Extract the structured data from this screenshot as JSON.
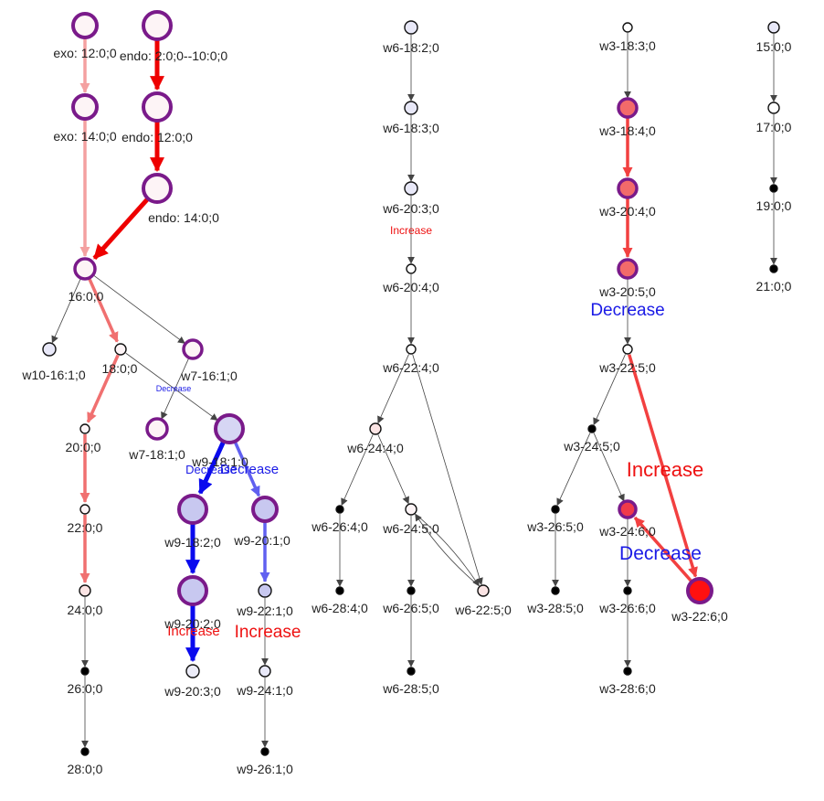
{
  "colors": {
    "purple": "#7a1a8a",
    "dark": "#111111",
    "strong_red": "#ee0000",
    "pink": "#f4a0a0",
    "salmon": "#f07070",
    "red_light": "#f24040",
    "blue": "#0a0aee",
    "blue_light": "#6060f0",
    "gray": "#444444",
    "increase": "#ee1111",
    "decrease": "#1a1ae6"
  },
  "nodes": [
    {
      "id": "exo12",
      "label": "exo: 12:0;0",
      "fill": "#fdf4f6",
      "stroke": "purple"
    },
    {
      "id": "endo2",
      "label": "endo: 2:0;0--10:0;0",
      "fill": "#fdf4f6",
      "stroke": "purple"
    },
    {
      "id": "exo14",
      "label": "exo: 14:0;0",
      "fill": "#fdf4f6",
      "stroke": "purple"
    },
    {
      "id": "endo12",
      "label": "endo: 12:0;0",
      "fill": "#fdf4f6",
      "stroke": "purple"
    },
    {
      "id": "endo14",
      "label": "endo: 14:0;0",
      "fill": "#fdf4f6",
      "stroke": "purple"
    },
    {
      "id": "n16",
      "label": "16:0;0",
      "fill": "#fdf4f6",
      "stroke": "purple"
    },
    {
      "id": "w10_16_1",
      "label": "w10-16:1;0",
      "fill": "#e8e8f8",
      "stroke": "dark"
    },
    {
      "id": "n18",
      "label": "18:0;0",
      "fill": "#fdf4f6",
      "stroke": "dark"
    },
    {
      "id": "w7_16_1",
      "label": "w7-16:1;0",
      "fill": "#fdf4f6",
      "stroke": "purple"
    },
    {
      "id": "n20",
      "label": "20:0;0",
      "fill": "#fdf4f6",
      "stroke": "dark"
    },
    {
      "id": "w7_18_1",
      "label": "w7-18:1;0",
      "fill": "#fdf4f6",
      "stroke": "purple"
    },
    {
      "id": "w9_18_1",
      "label": "w9-18:1;0",
      "fill": "#d6d6f4",
      "stroke": "purple"
    },
    {
      "id": "n22",
      "label": "22:0;0",
      "fill": "#fdf4f6",
      "stroke": "dark"
    },
    {
      "id": "w9_18_2",
      "label": "w9-18:2;0",
      "fill": "#c8c8f0",
      "stroke": "purple"
    },
    {
      "id": "w9_20_1",
      "label": "w9-20:1;0",
      "fill": "#c8c8f0",
      "stroke": "purple"
    },
    {
      "id": "n24",
      "label": "24:0;0",
      "fill": "#fbe4e4",
      "stroke": "dark"
    },
    {
      "id": "w9_20_2",
      "label": "w9-20:2;0",
      "fill": "#c8c8f0",
      "stroke": "purple"
    },
    {
      "id": "w9_22_1",
      "label": "w9-22:1;0",
      "fill": "#c8c8f0",
      "stroke": "dark"
    },
    {
      "id": "n26",
      "label": "26:0;0",
      "fill": "#000000",
      "stroke": "dark"
    },
    {
      "id": "w9_20_3",
      "label": "w9-20:3;0",
      "fill": "#ececf8",
      "stroke": "dark"
    },
    {
      "id": "w9_24_1",
      "label": "w9-24:1;0",
      "fill": "#e8e8f8",
      "stroke": "dark"
    },
    {
      "id": "n28",
      "label": "28:0;0",
      "fill": "#000000",
      "stroke": "dark"
    },
    {
      "id": "w9_26_1",
      "label": "w9-26:1;0",
      "fill": "#000000",
      "stroke": "dark"
    },
    {
      "id": "w6_18_2",
      "label": "w6-18:2;0",
      "fill": "#e8e8f8",
      "stroke": "dark"
    },
    {
      "id": "w6_18_3",
      "label": "w6-18:3;0",
      "fill": "#e8e8f8",
      "stroke": "dark"
    },
    {
      "id": "w6_20_3",
      "label": "w6-20:3;0",
      "fill": "#e8e8f8",
      "stroke": "dark"
    },
    {
      "id": "w6_20_4",
      "label": "w6-20:4;0",
      "fill": "#ffffff",
      "stroke": "dark"
    },
    {
      "id": "w6_22_4",
      "label": "w6-22:4;0",
      "fill": "#ffffff",
      "stroke": "dark"
    },
    {
      "id": "w6_24_4",
      "label": "w6-24:4;0",
      "fill": "#fbe4e4",
      "stroke": "dark"
    },
    {
      "id": "w6_26_4",
      "label": "w6-26:4;0",
      "fill": "#000000",
      "stroke": "dark"
    },
    {
      "id": "w6_24_5",
      "label": "w6-24:5;0",
      "fill": "#fdf4f6",
      "stroke": "dark"
    },
    {
      "id": "w6_22_5",
      "label": "w6-22:5;0",
      "fill": "#fbe4e4",
      "stroke": "dark"
    },
    {
      "id": "w6_28_4",
      "label": "w6-28:4;0",
      "fill": "#000000",
      "stroke": "dark"
    },
    {
      "id": "w6_26_5",
      "label": "w6-26:5;0",
      "fill": "#000000",
      "stroke": "dark"
    },
    {
      "id": "w6_28_5",
      "label": "w6-28:5;0",
      "fill": "#000000",
      "stroke": "dark"
    },
    {
      "id": "w3_18_3",
      "label": "w3-18:3;0",
      "fill": "#ffffff",
      "stroke": "dark"
    },
    {
      "id": "w3_18_4",
      "label": "w3-18:4;0",
      "fill": "#f26a6a",
      "stroke": "purple"
    },
    {
      "id": "w3_20_4",
      "label": "w3-20:4;0",
      "fill": "#f26a6a",
      "stroke": "purple"
    },
    {
      "id": "w3_20_5",
      "label": "w3-20:5;0",
      "fill": "#f26a6a",
      "stroke": "purple"
    },
    {
      "id": "w3_22_5",
      "label": "w3-22:5;0",
      "fill": "#ffffff",
      "stroke": "dark"
    },
    {
      "id": "w3_24_5",
      "label": "w3-24:5;0",
      "fill": "#000000",
      "stroke": "dark"
    },
    {
      "id": "w3_26_5",
      "label": "w3-26:5;0",
      "fill": "#000000",
      "stroke": "dark"
    },
    {
      "id": "w3_24_6",
      "label": "w3-24:6;0",
      "fill": "#f03a4a",
      "stroke": "purple"
    },
    {
      "id": "w3_22_6",
      "label": "w3-22:6;0",
      "fill": "#ff1010",
      "stroke": "purple"
    },
    {
      "id": "w3_28_5",
      "label": "w3-28:5;0",
      "fill": "#000000",
      "stroke": "dark"
    },
    {
      "id": "w3_26_6",
      "label": "w3-26:6;0",
      "fill": "#000000",
      "stroke": "dark"
    },
    {
      "id": "w3_28_6",
      "label": "w3-28:6;0",
      "fill": "#000000",
      "stroke": "dark"
    },
    {
      "id": "n15",
      "label": "15:0;0",
      "fill": "#e8e8f8",
      "stroke": "dark"
    },
    {
      "id": "n17",
      "label": "17:0;0",
      "fill": "#ffffff",
      "stroke": "dark"
    },
    {
      "id": "n19",
      "label": "19:0;0",
      "fill": "#000000",
      "stroke": "dark"
    },
    {
      "id": "n21",
      "label": "21:0;0",
      "fill": "#000000",
      "stroke": "dark"
    }
  ],
  "edges": [
    {
      "from": "exo12",
      "to": "exo14",
      "color": "pink",
      "style": "thick"
    },
    {
      "from": "exo14",
      "to": "n16",
      "color": "pink",
      "style": "thick"
    },
    {
      "from": "endo2",
      "to": "endo12",
      "color": "strong_red",
      "style": "heavy"
    },
    {
      "from": "endo12",
      "to": "endo14",
      "color": "strong_red",
      "style": "heavy"
    },
    {
      "from": "endo14",
      "to": "n16",
      "color": "strong_red",
      "style": "heavy"
    },
    {
      "from": "n16",
      "to": "w10_16_1",
      "color": "gray",
      "style": "thin"
    },
    {
      "from": "n16",
      "to": "n18",
      "color": "salmon",
      "style": "thick"
    },
    {
      "from": "n16",
      "to": "w7_16_1",
      "color": "gray",
      "style": "thin"
    },
    {
      "from": "n18",
      "to": "n20",
      "color": "salmon",
      "style": "thick"
    },
    {
      "from": "n18",
      "to": "w9_18_1",
      "color": "gray",
      "style": "thin"
    },
    {
      "from": "w7_16_1",
      "to": "w7_18_1",
      "color": "gray",
      "style": "thin"
    },
    {
      "from": "n20",
      "to": "n22",
      "color": "salmon",
      "style": "thick"
    },
    {
      "from": "n22",
      "to": "n24",
      "color": "salmon",
      "style": "thick"
    },
    {
      "from": "n24",
      "to": "n26",
      "color": "gray",
      "style": "thin"
    },
    {
      "from": "n26",
      "to": "n28",
      "color": "gray",
      "style": "thin"
    },
    {
      "from": "w9_18_1",
      "to": "w9_18_2",
      "color": "blue",
      "style": "heavy"
    },
    {
      "from": "w9_18_1",
      "to": "w9_20_1",
      "color": "blue_light",
      "style": "thick"
    },
    {
      "from": "w9_18_2",
      "to": "w9_20_2",
      "color": "blue",
      "style": "heavy"
    },
    {
      "from": "w9_20_2",
      "to": "w9_20_3",
      "color": "blue",
      "style": "heavy"
    },
    {
      "from": "w9_20_1",
      "to": "w9_22_1",
      "color": "blue_light",
      "style": "thick"
    },
    {
      "from": "w9_22_1",
      "to": "w9_24_1",
      "color": "gray",
      "style": "thin"
    },
    {
      "from": "w9_24_1",
      "to": "w9_26_1",
      "color": "gray",
      "style": "thin"
    },
    {
      "from": "w6_18_2",
      "to": "w6_18_3",
      "color": "gray",
      "style": "thin"
    },
    {
      "from": "w6_18_3",
      "to": "w6_20_3",
      "color": "gray",
      "style": "thin"
    },
    {
      "from": "w6_20_3",
      "to": "w6_20_4",
      "color": "gray",
      "style": "thin"
    },
    {
      "from": "w6_20_4",
      "to": "w6_22_4",
      "color": "gray",
      "style": "thin"
    },
    {
      "from": "w6_22_4",
      "to": "w6_24_4",
      "color": "gray",
      "style": "thin"
    },
    {
      "from": "w6_22_4",
      "to": "w6_22_5",
      "color": "gray",
      "style": "thin"
    },
    {
      "from": "w6_24_4",
      "to": "w6_26_4",
      "color": "gray",
      "style": "thin"
    },
    {
      "from": "w6_24_4",
      "to": "w6_24_5",
      "color": "gray",
      "style": "thin"
    },
    {
      "from": "w6_26_4",
      "to": "w6_28_4",
      "color": "gray",
      "style": "thin"
    },
    {
      "from": "w6_24_5",
      "to": "w6_22_5",
      "color": "gray",
      "style": "thin",
      "bend": -8
    },
    {
      "from": "w6_22_5",
      "to": "w6_24_5",
      "color": "gray",
      "style": "thin",
      "bend": -8
    },
    {
      "from": "w6_24_5",
      "to": "w6_26_5",
      "color": "gray",
      "style": "thin"
    },
    {
      "from": "w6_26_5",
      "to": "w6_28_5",
      "color": "gray",
      "style": "thin"
    },
    {
      "from": "w3_18_3",
      "to": "w3_18_4",
      "color": "gray",
      "style": "thin"
    },
    {
      "from": "w3_18_4",
      "to": "w3_20_4",
      "color": "red_light",
      "style": "thick"
    },
    {
      "from": "w3_20_4",
      "to": "w3_20_5",
      "color": "red_light",
      "style": "thick"
    },
    {
      "from": "w3_20_5",
      "to": "w3_22_5",
      "color": "gray",
      "style": "thin"
    },
    {
      "from": "w3_22_5",
      "to": "w3_24_5",
      "color": "gray",
      "style": "thin"
    },
    {
      "from": "w3_22_5",
      "to": "w3_22_6",
      "color": "red_light",
      "style": "thick"
    },
    {
      "from": "w3_24_5",
      "to": "w3_26_5",
      "color": "gray",
      "style": "thin"
    },
    {
      "from": "w3_24_5",
      "to": "w3_24_6",
      "color": "gray",
      "style": "thin"
    },
    {
      "from": "w3_22_6",
      "to": "w3_24_6",
      "color": "red_light",
      "style": "thick"
    },
    {
      "from": "w3_26_5",
      "to": "w3_28_5",
      "color": "gray",
      "style": "thin"
    },
    {
      "from": "w3_24_6",
      "to": "w3_26_6",
      "color": "gray",
      "style": "thin"
    },
    {
      "from": "w3_26_6",
      "to": "w3_28_6",
      "color": "gray",
      "style": "thin"
    },
    {
      "from": "n15",
      "to": "n17",
      "color": "gray",
      "style": "thin"
    },
    {
      "from": "n17",
      "to": "n19",
      "color": "gray",
      "style": "thin"
    },
    {
      "from": "n19",
      "to": "n21",
      "color": "gray",
      "style": "thin"
    }
  ],
  "annotations": [
    {
      "id": "w6_increase",
      "text": "Increase",
      "color": "increase",
      "size": "small"
    },
    {
      "id": "w7_decrease",
      "text": "Decrease",
      "color": "decrease",
      "size": "tiny"
    },
    {
      "id": "w9_decrease_left",
      "text": "Decrease",
      "color": "decrease",
      "size": "medium"
    },
    {
      "id": "w9_decrease_right",
      "text": "Decrease",
      "color": "decrease",
      "size": "medium"
    },
    {
      "id": "w9_increase_left",
      "text": "Increase",
      "color": "increase",
      "size": "medium"
    },
    {
      "id": "w9_increase_right",
      "text": "Increase",
      "color": "increase",
      "size": "large"
    },
    {
      "id": "w3_decrease_top",
      "text": "Decrease",
      "color": "decrease",
      "size": "large"
    },
    {
      "id": "w3_increase",
      "text": "Increase",
      "color": "increase",
      "size": "xlarge"
    },
    {
      "id": "w3_decrease_bottom",
      "text": "Decrease",
      "color": "decrease",
      "size": "large"
    }
  ]
}
